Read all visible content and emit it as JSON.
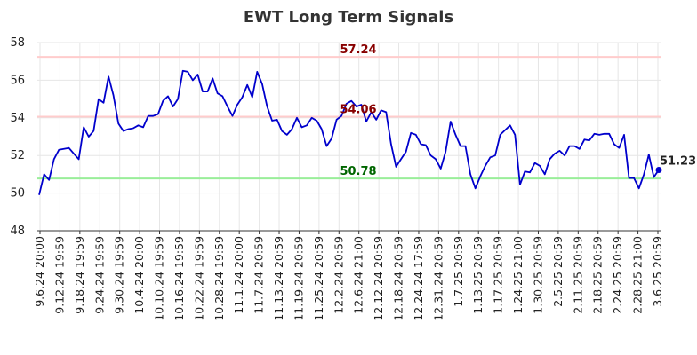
{
  "chart_data": {
    "type": "line",
    "title": "EWT Long Term Signals",
    "xlabel": "",
    "ylabel": "",
    "ylim": [
      48,
      58
    ],
    "yticks": [
      "48",
      "50",
      "52",
      "54",
      "56",
      "58"
    ],
    "grid": true,
    "x_tick_labels": [
      "9.6.24 20:00",
      "9.12.24 19:59",
      "9.18.24 19:59",
      "9.24.24 19:59",
      "9.30.24 19:59",
      "10.4.24 20:00",
      "10.10.24 19:59",
      "10.16.24 19:59",
      "10.22.24 19:59",
      "10.28.24 19:59",
      "11.1.24 20:00",
      "11.7.24 20:59",
      "11.13.24 20:59",
      "11.19.24 20:59",
      "11.25.24 20:59",
      "12.2.24 20:59",
      "12.6.24 21:00",
      "12.12.24 20:59",
      "12.18.24 20:59",
      "12.24.24 17:59",
      "12.31.24 20:59",
      "1.7.25 20:59",
      "1.13.25 20:59",
      "1.17.25 20:59",
      "1.24.25 21:00",
      "1.30.25 20:59",
      "2.5.25 20:59",
      "2.11.25 20:59",
      "2.18.25 20:59",
      "2.24.25 20:59",
      "2.28.25 21:00",
      "3.6.25 20:59"
    ],
    "series": [
      {
        "color": "#0000cc",
        "values": [
          49.9,
          51.0,
          50.7,
          51.8,
          52.3,
          52.35,
          52.4,
          52.1,
          51.8,
          53.5,
          53.0,
          53.3,
          55.0,
          54.8,
          56.2,
          55.2,
          53.7,
          53.3,
          53.4,
          53.45,
          53.6,
          53.5,
          54.1,
          54.1,
          54.2,
          54.9,
          55.15,
          54.6,
          55.0,
          56.5,
          56.45,
          56.0,
          56.3,
          55.4,
          55.4,
          56.1,
          55.3,
          55.15,
          54.6,
          54.1,
          54.7,
          55.1,
          55.75,
          55.1,
          56.45,
          55.8,
          54.6,
          53.85,
          53.9,
          53.3,
          53.1,
          53.4,
          54.0,
          53.5,
          53.6,
          54.0,
          53.85,
          53.4,
          52.5,
          52.9,
          53.9,
          54.1,
          54.75,
          54.9,
          54.6,
          54.7,
          53.8,
          54.3,
          53.9,
          54.4,
          54.3,
          52.6,
          51.4,
          51.8,
          52.2,
          53.2,
          53.1,
          52.6,
          52.55,
          52.0,
          51.8,
          51.3,
          52.2,
          53.8,
          53.1,
          52.5,
          52.5,
          51.0,
          50.25,
          50.9,
          51.45,
          51.9,
          52.0,
          53.1,
          53.35,
          53.6,
          53.1,
          50.45,
          51.15,
          51.1,
          51.6,
          51.45,
          51.0,
          51.8,
          52.1,
          52.25,
          52.0,
          52.5,
          52.5,
          52.35,
          52.85,
          52.8,
          53.15,
          53.1,
          53.15,
          53.15,
          52.6,
          52.4,
          53.1,
          50.8,
          50.8,
          50.25,
          51.0,
          52.05,
          50.85,
          51.23
        ]
      }
    ],
    "annotations": [
      {
        "text": "57.24",
        "value": 57.24,
        "color": "#880000",
        "line_color": "#ffcccc"
      },
      {
        "text": "54.06",
        "value": 54.06,
        "color": "#880000",
        "line_color": "#ffcccc"
      },
      {
        "text": "50.78",
        "value": 50.78,
        "color": "#006600",
        "line_color": "#99ee99"
      }
    ],
    "last_value_label": "51.23"
  }
}
